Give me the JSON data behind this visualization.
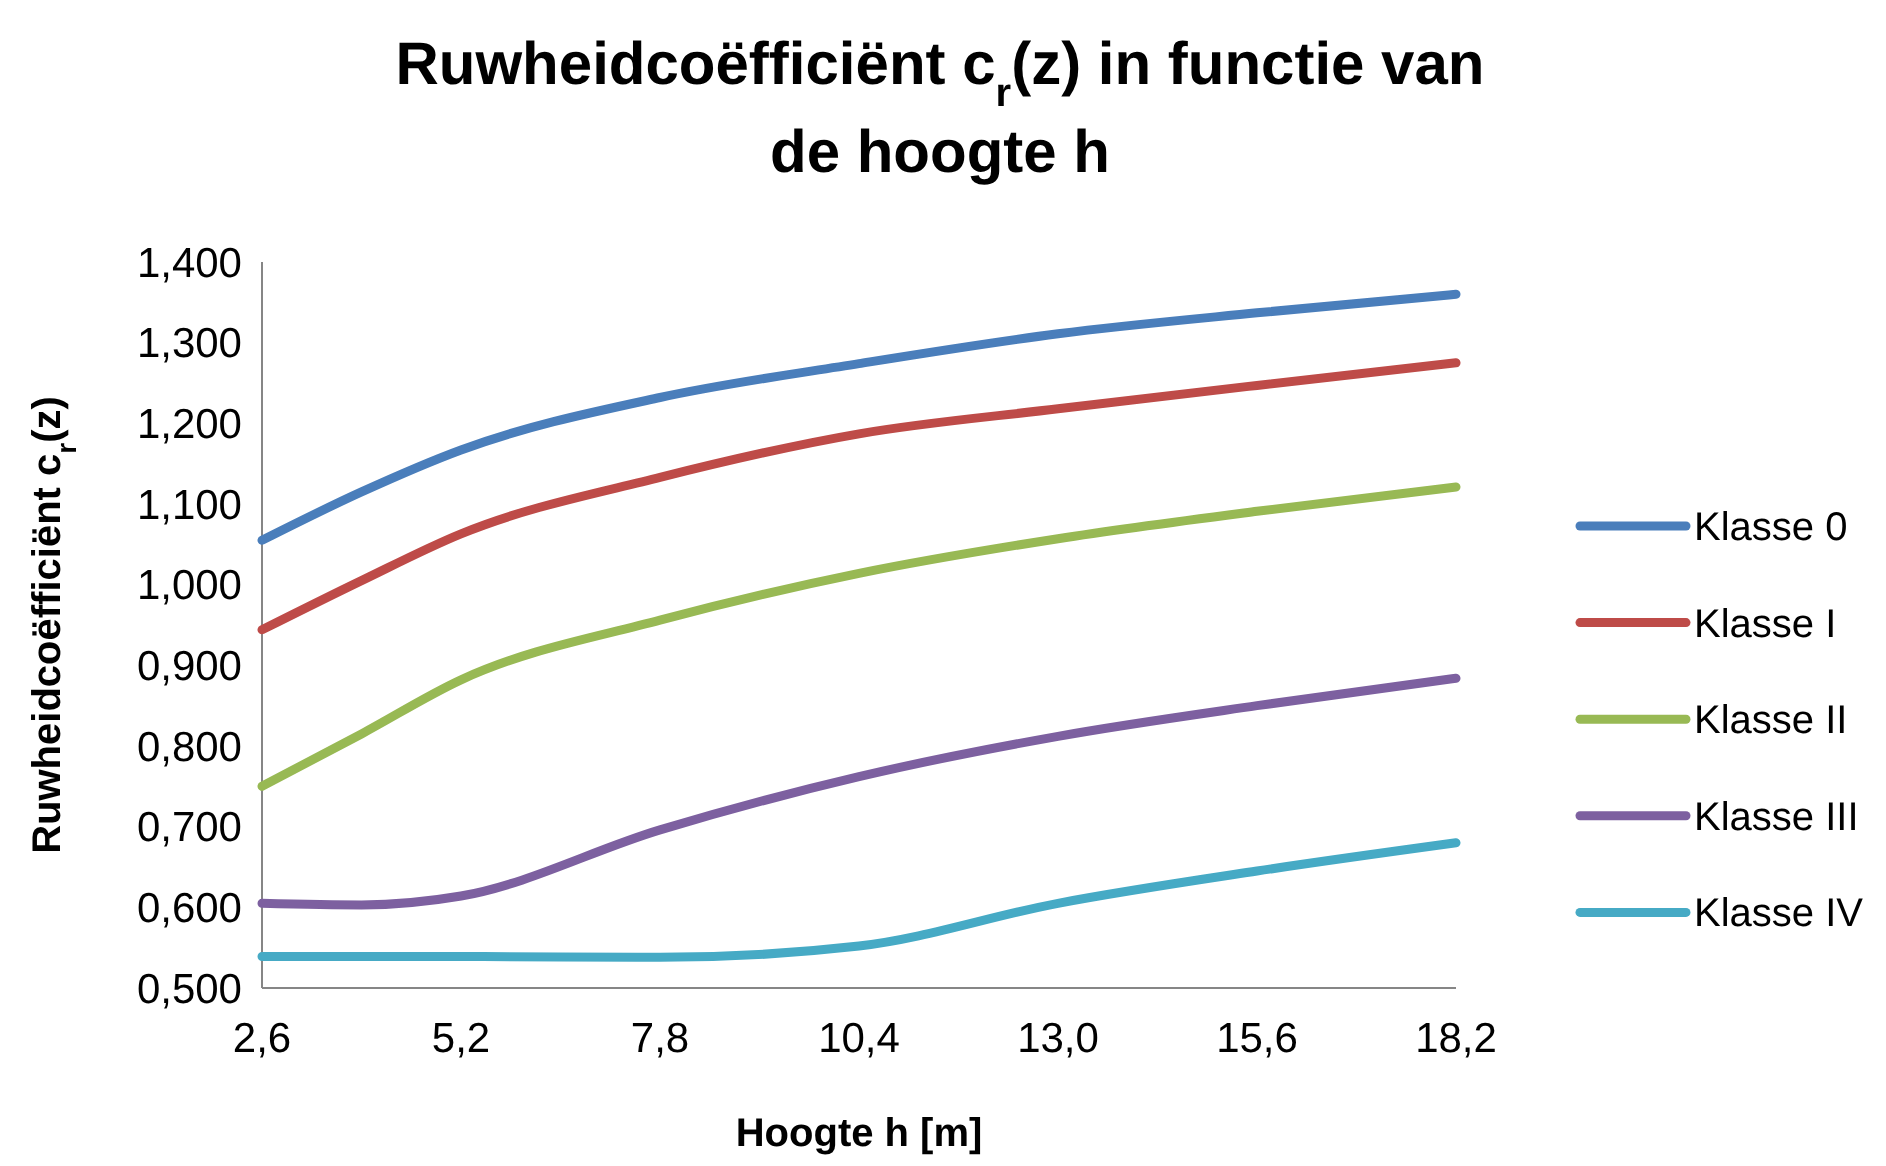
{
  "chart_data": {
    "type": "line",
    "title": "Ruwheidcoëfficiënt c$_{r}$(z) in functie van de hoogte h",
    "xlabel": "Hoogte h [m]",
    "ylabel": "Ruwheidcoëfficiënt c$_{r}$(z)",
    "x": [
      2.6,
      3.9,
      5.2,
      7.8,
      10.4,
      13.0,
      15.6,
      18.2
    ],
    "series": [
      {
        "name": "Klasse 0",
        "color": "#4a7ebb",
        "values": [
          1.055,
          1.115,
          1.167,
          1.232,
          1.274,
          1.311,
          1.337,
          1.36
        ]
      },
      {
        "name": "Klasse I",
        "color": "#be4b48",
        "values": [
          0.944,
          1.005,
          1.063,
          1.133,
          1.187,
          1.218,
          1.247,
          1.275
        ]
      },
      {
        "name": "Klasse II",
        "color": "#98b954",
        "values": [
          0.75,
          0.815,
          0.882,
          0.956,
          1.014,
          1.057,
          1.091,
          1.121
        ]
      },
      {
        "name": "Klasse III",
        "color": "#7d60a0",
        "values": [
          0.605,
          0.603,
          0.614,
          0.696,
          0.762,
          0.812,
          0.85,
          0.884
        ]
      },
      {
        "name": "Klasse IV",
        "color": "#46aac5",
        "values": [
          0.539,
          0.539,
          0.539,
          0.538,
          0.552,
          0.605,
          0.645,
          0.68
        ]
      }
    ],
    "xlim": [
      2.6,
      18.2
    ],
    "xticks": [
      {
        "value": 2.6,
        "label": "2,6"
      },
      {
        "value": 5.2,
        "label": "5,2"
      },
      {
        "value": 7.8,
        "label": "7,8"
      },
      {
        "value": 10.4,
        "label": "10,4"
      },
      {
        "value": 13.0,
        "label": "13,0"
      },
      {
        "value": 15.6,
        "label": "15,6"
      },
      {
        "value": 18.2,
        "label": "18,2"
      }
    ],
    "ylim": [
      0.5,
      1.4
    ],
    "yticks": [
      {
        "value": 0.5,
        "label": "0,500"
      },
      {
        "value": 0.6,
        "label": "0,600"
      },
      {
        "value": 0.7,
        "label": "0,700"
      },
      {
        "value": 0.8,
        "label": "0,800"
      },
      {
        "value": 0.9,
        "label": "0,900"
      },
      {
        "value": 1.0,
        "label": "1,000"
      },
      {
        "value": 1.1,
        "label": "1,100"
      },
      {
        "value": 1.2,
        "label": "1,200"
      },
      {
        "value": 1.3,
        "label": "1,300"
      },
      {
        "value": 1.4,
        "label": "1,400"
      }
    ],
    "grid": false,
    "legend": "right",
    "marker": "none",
    "line_style": "solid"
  }
}
